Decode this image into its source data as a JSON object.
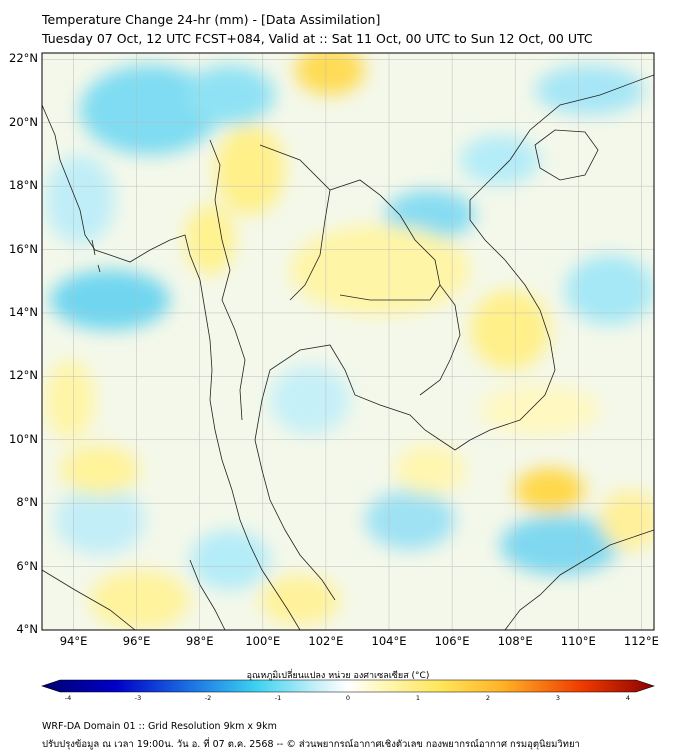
{
  "header": {
    "title_line1": "Temperature Change 24-hr (mm) - [Data Assimilation]",
    "title_line2": "Tuesday 07 Oct, 12 UTC FCST+084, Valid at :: Sat 11 Oct, 00 UTC to Sun 12 Oct, 00 UTC"
  },
  "map": {
    "lat_ticks": [
      "22°N",
      "20°N",
      "18°N",
      "16°N",
      "14°N",
      "12°N",
      "10°N",
      "8°N",
      "6°N",
      "4°N"
    ],
    "lon_ticks": [
      "94°E",
      "96°E",
      "98°E",
      "100°E",
      "102°E",
      "104°E",
      "106°E",
      "108°E",
      "110°E",
      "112°E"
    ],
    "lat_values": [
      22,
      20,
      18,
      16,
      14,
      12,
      10,
      8,
      6,
      4
    ],
    "lon_values": [
      94,
      96,
      98,
      100,
      102,
      104,
      106,
      108,
      110,
      112
    ],
    "lat_range": [
      4,
      22.2
    ],
    "lon_range": [
      93,
      112.4
    ],
    "colors": {
      "land_border": "#222222",
      "grid": "#bbbbbb",
      "frame": "#000000"
    }
  },
  "colorbar": {
    "label": "อุณหภูมิเปลี่ยนแปลง หน่วย องศาเซลเซียส (°C)",
    "ticks": [
      "-4",
      "-3",
      "-2",
      "-1",
      "0",
      "1",
      "2",
      "3",
      "4"
    ],
    "tick_values": [
      -4,
      -3,
      -2,
      -1,
      0,
      1,
      2,
      3,
      4
    ],
    "colors": [
      "#00006e",
      "#0000c8",
      "#1464dc",
      "#28a0f0",
      "#3cd2f0",
      "#8ce6f5",
      "#c8f0f8",
      "#ffffff",
      "#ffffff",
      "#fff8b4",
      "#fff078",
      "#ffd23c",
      "#ffa01e",
      "#ff5a00",
      "#d21400",
      "#8c0000"
    ]
  },
  "footer": {
    "line1": "WRF-DA Domain 01 :: Grid Resolution 9km x 9km",
    "line2": "ปรับปรุงข้อมูล ณ เวลา 19:00น. วัน อ. ที่ 07 ต.ค. 2568 -- © ส่วนพยากรณ์อากาศเชิงตัวเลข กองพยากรณ์อากาศ กรมอุตุนิยมวิทยา"
  }
}
